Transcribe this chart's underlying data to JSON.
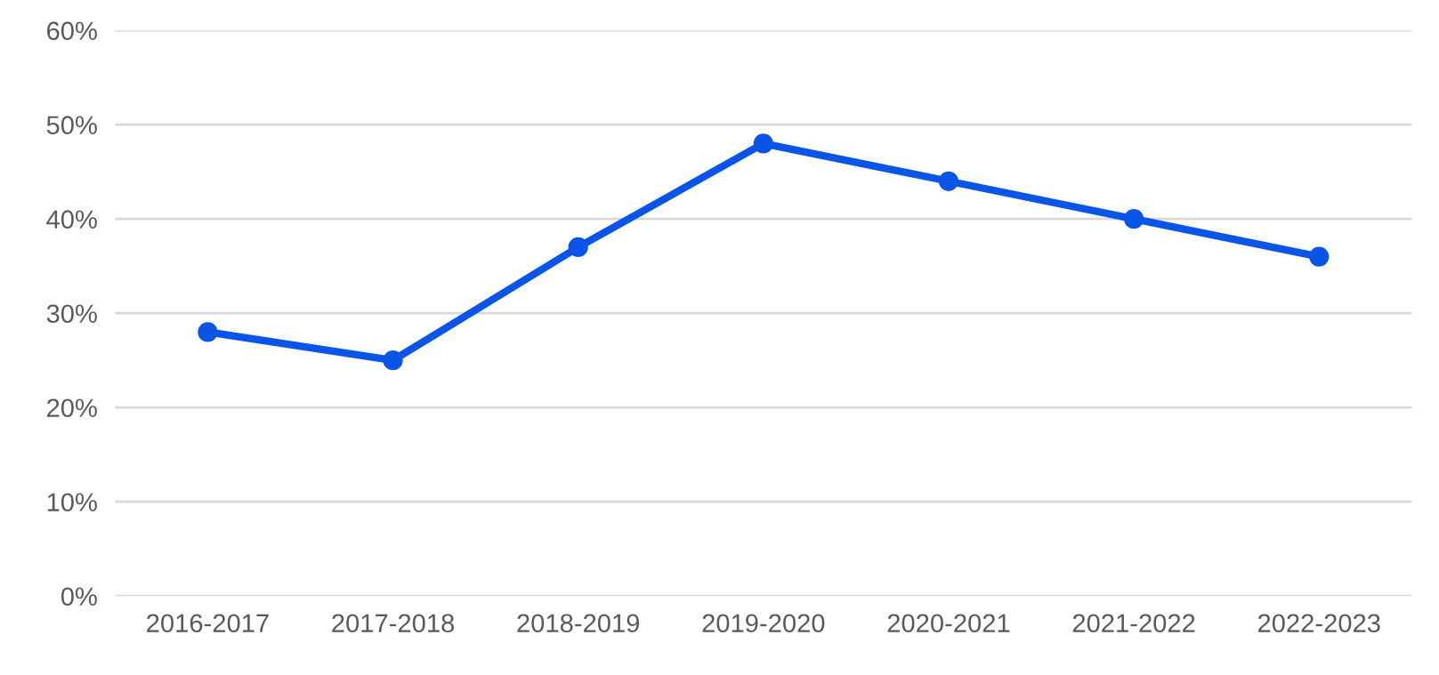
{
  "chart_data": {
    "type": "line",
    "categories": [
      "2016-2017",
      "2017-2018",
      "2018-2019",
      "2019-2020",
      "2020-2021",
      "2021-2022",
      "2022-2023"
    ],
    "series": [
      {
        "color": "#0a55e8",
        "values": [
          28,
          25,
          37,
          48,
          44,
          40,
          36
        ]
      }
    ],
    "ylim": [
      0,
      60
    ],
    "yticks": [
      {
        "value": 0,
        "label": "0%"
      },
      {
        "value": 10,
        "label": "10%"
      },
      {
        "value": 20,
        "label": "20%"
      },
      {
        "value": 30,
        "label": "30%"
      },
      {
        "value": 40,
        "label": "40%"
      },
      {
        "value": 50,
        "label": "50%"
      },
      {
        "value": 60,
        "label": "60%"
      }
    ],
    "grid": "y",
    "marker": "circle",
    "line_style": "solid"
  }
}
